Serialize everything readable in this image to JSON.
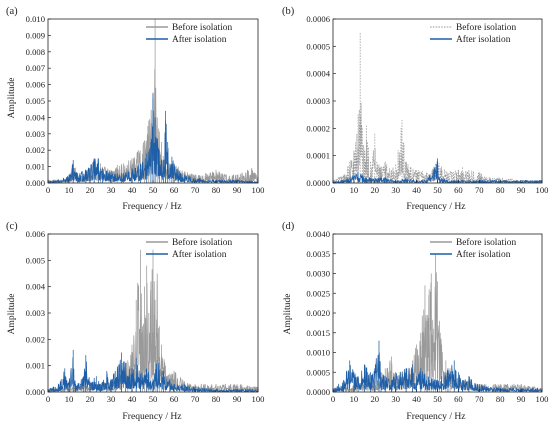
{
  "chart_data": [
    {
      "type": "line",
      "panel_label": "(a)",
      "xlabel": "Frequency / Hz",
      "ylabel": "Amplitude",
      "xlim": [
        0,
        100
      ],
      "ylim": [
        0,
        0.01
      ],
      "xticks": [
        "0",
        "10",
        "20",
        "30",
        "40",
        "50",
        "60",
        "70",
        "80",
        "90",
        "100"
      ],
      "yticks": [
        "0.000",
        "0.001",
        "0.002",
        "0.003",
        "0.004",
        "0.005",
        "0.006",
        "0.007",
        "0.008",
        "0.009",
        "0.010"
      ],
      "legend_position": "top-right",
      "series": [
        {
          "name": "Before isolation",
          "color": "#9a9a9a",
          "dashed": false,
          "points": [
            [
              0,
              0.0002
            ],
            [
              5,
              0.0002
            ],
            [
              10,
              0.0004
            ],
            [
              12,
              0.0012
            ],
            [
              15,
              0.0006
            ],
            [
              20,
              0.0009
            ],
            [
              22,
              0.0015
            ],
            [
              25,
              0.0012
            ],
            [
              30,
              0.0008
            ],
            [
              33,
              0.0011
            ],
            [
              36,
              0.0012
            ],
            [
              40,
              0.0015
            ],
            [
              43,
              0.002
            ],
            [
              46,
              0.0026
            ],
            [
              48,
              0.0038
            ],
            [
              50,
              0.0054
            ],
            [
              51,
              0.01
            ],
            [
              52,
              0.004
            ],
            [
              54,
              0.0025
            ],
            [
              56,
              0.0018
            ],
            [
              58,
              0.0012
            ],
            [
              60,
              0.0012
            ],
            [
              65,
              0.0007
            ],
            [
              70,
              0.0005
            ],
            [
              75,
              0.0006
            ],
            [
              80,
              0.0008
            ],
            [
              85,
              0.0005
            ],
            [
              90,
              0.0005
            ],
            [
              95,
              0.0008
            ],
            [
              97,
              0.0009
            ],
            [
              100,
              0.0004
            ]
          ]
        },
        {
          "name": "After isolation",
          "color": "#1f5fa8",
          "dashed": false,
          "points": [
            [
              0,
              0.0001
            ],
            [
              5,
              0.0002
            ],
            [
              10,
              0.0005
            ],
            [
              12,
              0.0014
            ],
            [
              14,
              0.0006
            ],
            [
              18,
              0.0008
            ],
            [
              22,
              0.0015
            ],
            [
              24,
              0.0015
            ],
            [
              26,
              0.0009
            ],
            [
              30,
              0.0007
            ],
            [
              35,
              0.0006
            ],
            [
              40,
              0.0009
            ],
            [
              44,
              0.0012
            ],
            [
              47,
              0.0018
            ],
            [
              49,
              0.0025
            ],
            [
              50,
              0.0055
            ],
            [
              51,
              0.004
            ],
            [
              53,
              0.002
            ],
            [
              55,
              0.0014
            ],
            [
              56,
              0.0044
            ],
            [
              57,
              0.0025
            ],
            [
              59,
              0.0016
            ],
            [
              62,
              0.0008
            ],
            [
              65,
              0.0005
            ],
            [
              70,
              0.0003
            ],
            [
              80,
              0.0002
            ],
            [
              90,
              0.0002
            ],
            [
              100,
              0.0001
            ]
          ]
        }
      ]
    },
    {
      "type": "line",
      "panel_label": "(b)",
      "xlabel": "Frequency / Hz",
      "ylabel": "",
      "xlim": [
        0,
        100
      ],
      "ylim": [
        0,
        0.0006
      ],
      "xticks": [
        "0",
        "10",
        "20",
        "30",
        "40",
        "50",
        "60",
        "70",
        "80",
        "90",
        "100"
      ],
      "yticks": [
        "0.0000",
        "0.0001",
        "0.0002",
        "0.0003",
        "0.0004",
        "0.0005",
        "0.0006"
      ],
      "legend_position": "top-right",
      "series": [
        {
          "name": "Before isolation",
          "color": "#9a9a9a",
          "dashed": true,
          "points": [
            [
              0,
              1e-05
            ],
            [
              5,
              3e-05
            ],
            [
              8,
              8e-05
            ],
            [
              10,
              0.00012
            ],
            [
              12,
              0.00025
            ],
            [
              13,
              0.00055
            ],
            [
              14,
              0.0002
            ],
            [
              15,
              0.00012
            ],
            [
              16,
              0.00021
            ],
            [
              17,
              0.00013
            ],
            [
              18,
              8e-05
            ],
            [
              20,
              0.00018
            ],
            [
              21,
              8e-05
            ],
            [
              23,
              6e-05
            ],
            [
              25,
              8e-05
            ],
            [
              28,
              5e-05
            ],
            [
              30,
              7e-05
            ],
            [
              33,
              0.00023
            ],
            [
              34,
              0.00014
            ],
            [
              35,
              8e-05
            ],
            [
              37,
              6e-05
            ],
            [
              40,
              5e-05
            ],
            [
              45,
              4e-05
            ],
            [
              50,
              8e-05
            ],
            [
              55,
              4e-05
            ],
            [
              60,
              5e-05
            ],
            [
              62,
              6e-05
            ],
            [
              65,
              5e-05
            ],
            [
              70,
              4e-05
            ],
            [
              75,
              2e-05
            ],
            [
              80,
              2e-05
            ],
            [
              90,
              1e-05
            ],
            [
              100,
              1e-05
            ]
          ]
        },
        {
          "name": "After isolation",
          "color": "#1f5fa8",
          "dashed": false,
          "points": [
            [
              0,
              1e-05
            ],
            [
              5,
              1e-05
            ],
            [
              8,
              2e-05
            ],
            [
              10,
              3e-05
            ],
            [
              12,
              4e-05
            ],
            [
              14,
              3e-05
            ],
            [
              16,
              2e-05
            ],
            [
              20,
              2e-05
            ],
            [
              25,
              2e-05
            ],
            [
              30,
              1e-05
            ],
            [
              35,
              2e-05
            ],
            [
              40,
              1e-05
            ],
            [
              45,
              1e-05
            ],
            [
              50,
              9e-05
            ],
            [
              51,
              2e-05
            ],
            [
              55,
              1e-05
            ],
            [
              60,
              1e-05
            ],
            [
              70,
              1e-05
            ],
            [
              80,
              1e-05
            ],
            [
              90,
              1e-05
            ],
            [
              100,
              1e-05
            ]
          ]
        }
      ]
    },
    {
      "type": "line",
      "panel_label": "(c)",
      "xlabel": "Frequency / Hz",
      "ylabel": "Amplitude",
      "xlim": [
        0,
        100
      ],
      "ylim": [
        0,
        0.006
      ],
      "xticks": [
        "0",
        "10",
        "20",
        "30",
        "40",
        "50",
        "60",
        "70",
        "80",
        "90",
        "100"
      ],
      "yticks": [
        "0.000",
        "0.001",
        "0.002",
        "0.003",
        "0.004",
        "0.005",
        "0.006"
      ],
      "legend_position": "top-right",
      "series": [
        {
          "name": "Before isolation",
          "color": "#9a9a9a",
          "dashed": false,
          "points": [
            [
              0,
              0.0001
            ],
            [
              10,
              0.0002
            ],
            [
              20,
              0.0003
            ],
            [
              30,
              0.0004
            ],
            [
              35,
              0.0008
            ],
            [
              38,
              0.0012
            ],
            [
              40,
              0.0018
            ],
            [
              42,
              0.0035
            ],
            [
              44,
              0.0054
            ],
            [
              45,
              0.0025
            ],
            [
              46,
              0.004
            ],
            [
              47,
              0.0048
            ],
            [
              48,
              0.003
            ],
            [
              49,
              0.0042
            ],
            [
              50,
              0.0054
            ],
            [
              51,
              0.0035
            ],
            [
              52,
              0.0045
            ],
            [
              53,
              0.0025
            ],
            [
              54,
              0.0018
            ],
            [
              56,
              0.001
            ],
            [
              58,
              0.0007
            ],
            [
              60,
              0.0008
            ],
            [
              65,
              0.0004
            ],
            [
              70,
              0.0003
            ],
            [
              80,
              0.0003
            ],
            [
              90,
              0.0003
            ],
            [
              100,
              0.0002
            ]
          ]
        },
        {
          "name": "After isolation",
          "color": "#1f5fa8",
          "dashed": false,
          "points": [
            [
              0,
              0.0001
            ],
            [
              5,
              0.0003
            ],
            [
              8,
              0.0009
            ],
            [
              10,
              0.0004
            ],
            [
              12,
              0.0016
            ],
            [
              13,
              0.0003
            ],
            [
              17,
              0.0006
            ],
            [
              18,
              0.0014
            ],
            [
              20,
              0.0004
            ],
            [
              23,
              0.0006
            ],
            [
              25,
              0.0003
            ],
            [
              28,
              0.0008
            ],
            [
              30,
              0.0005
            ],
            [
              32,
              0.0008
            ],
            [
              35,
              0.0015
            ],
            [
              37,
              0.0011
            ],
            [
              40,
              0.0009
            ],
            [
              42,
              0.0013
            ],
            [
              44,
              0.0007
            ],
            [
              47,
              0.0009
            ],
            [
              50,
              0.0005
            ],
            [
              52,
              0.0012
            ],
            [
              55,
              0.0008
            ],
            [
              58,
              0.0005
            ],
            [
              60,
              0.0003
            ],
            [
              65,
              0.0003
            ],
            [
              70,
              0.0002
            ],
            [
              80,
              0.0001
            ],
            [
              90,
              0.0001
            ],
            [
              100,
              0.0001
            ]
          ]
        }
      ]
    },
    {
      "type": "line",
      "panel_label": "(d)",
      "xlabel": "Frequency / Hz",
      "ylabel": "Amplitude",
      "xlim": [
        0,
        100
      ],
      "ylim": [
        0,
        0.004
      ],
      "xticks": [
        "0",
        "10",
        "20",
        "30",
        "40",
        "50",
        "60",
        "70",
        "80",
        "90",
        "100"
      ],
      "yticks": [
        "0.0000",
        "0.0005",
        "0.0010",
        "0.0015",
        "0.0020",
        "0.0025",
        "0.0030",
        "0.0035",
        "0.0040"
      ],
      "legend_position": "top-right",
      "series": [
        {
          "name": "Before isolation",
          "color": "#9a9a9a",
          "dashed": false,
          "points": [
            [
              0,
              0.0001
            ],
            [
              10,
              0.0002
            ],
            [
              20,
              0.0003
            ],
            [
              25,
              0.0006
            ],
            [
              28,
              0.0009
            ],
            [
              30,
              0.0004
            ],
            [
              35,
              0.0006
            ],
            [
              38,
              0.0008
            ],
            [
              40,
              0.0012
            ],
            [
              42,
              0.0015
            ],
            [
              44,
              0.0027
            ],
            [
              45,
              0.0018
            ],
            [
              46,
              0.0026
            ],
            [
              47,
              0.003
            ],
            [
              48,
              0.0016
            ],
            [
              49,
              0.0035
            ],
            [
              50,
              0.0028
            ],
            [
              51,
              0.0018
            ],
            [
              52,
              0.0012
            ],
            [
              54,
              0.0008
            ],
            [
              56,
              0.0006
            ],
            [
              60,
              0.0004
            ],
            [
              65,
              0.0003
            ],
            [
              70,
              0.0002
            ],
            [
              80,
              0.0002
            ],
            [
              90,
              0.0002
            ],
            [
              100,
              0.0001
            ]
          ]
        },
        {
          "name": "After isolation",
          "color": "#1f5fa8",
          "dashed": false,
          "points": [
            [
              0,
              0.0001
            ],
            [
              5,
              0.0003
            ],
            [
              8,
              0.0008
            ],
            [
              10,
              0.0005
            ],
            [
              12,
              0.0004
            ],
            [
              15,
              0.0007
            ],
            [
              18,
              0.0005
            ],
            [
              20,
              0.0006
            ],
            [
              22,
              0.0013
            ],
            [
              23,
              0.0005
            ],
            [
              25,
              0.0004
            ],
            [
              28,
              0.0003
            ],
            [
              30,
              0.0005
            ],
            [
              35,
              0.0006
            ],
            [
              38,
              0.0007
            ],
            [
              40,
              0.0004
            ],
            [
              42,
              0.0006
            ],
            [
              45,
              0.0004
            ],
            [
              50,
              0.0003
            ],
            [
              52,
              0.0004
            ],
            [
              55,
              0.0006
            ],
            [
              58,
              0.0008
            ],
            [
              60,
              0.0005
            ],
            [
              62,
              0.0003
            ],
            [
              65,
              0.0004
            ],
            [
              70,
              0.0002
            ],
            [
              80,
              0.0001
            ],
            [
              90,
              0.0001
            ],
            [
              100,
              0.0001
            ]
          ]
        }
      ]
    }
  ]
}
